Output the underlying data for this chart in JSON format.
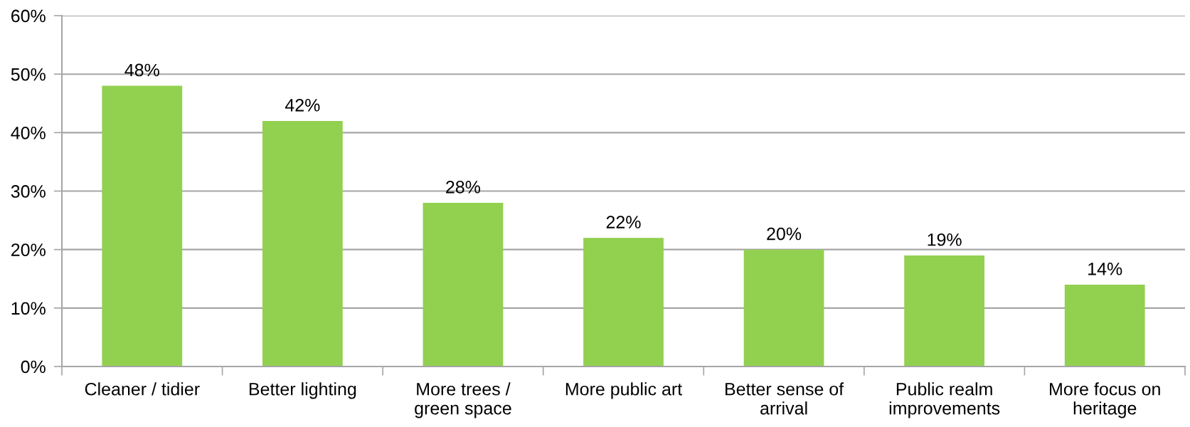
{
  "chart_data": {
    "type": "bar",
    "categories": [
      "Cleaner / tidier",
      "Better lighting",
      "More trees / green space",
      "More public art",
      "Better sense of arrival",
      "Public realm improvements",
      "More focus on heritage"
    ],
    "values": [
      48,
      42,
      28,
      22,
      20,
      19,
      14
    ],
    "value_labels": [
      "48%",
      "42%",
      "28%",
      "22%",
      "20%",
      "19%",
      "14%"
    ],
    "color": "#92d050",
    "ylim": [
      0,
      60
    ],
    "yticks": [
      {
        "value": 0,
        "label": "0%"
      },
      {
        "value": 10,
        "label": "10%"
      },
      {
        "value": 20,
        "label": "20%"
      },
      {
        "value": 30,
        "label": "30%"
      },
      {
        "value": 40,
        "label": "40%"
      },
      {
        "value": 50,
        "label": "50%"
      },
      {
        "value": 60,
        "label": "60%"
      }
    ],
    "grid": "y"
  }
}
